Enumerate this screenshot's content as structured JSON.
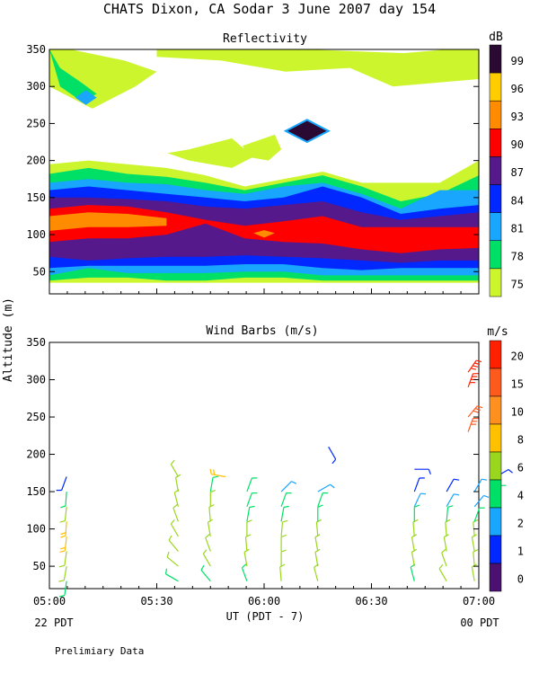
{
  "figure": {
    "title": "CHATS Dixon, CA  Sodar   3 June 2007  day 154",
    "y_axis_label": "Altitude (m)",
    "x_axis_label": "UT  (PDT - 7)",
    "left_date": "22 PDT",
    "right_date": "00 PDT",
    "footer": "Prelimiary Data"
  },
  "chart_data": [
    {
      "type": "heatmap",
      "title": "Reflectivity",
      "units": "dB",
      "x_ticks": [
        "05:00",
        "05:30",
        "06:00",
        "06:30",
        "07:00"
      ],
      "x_range_hours": [
        5.0,
        7.0
      ],
      "y_ticks": [
        50,
        100,
        150,
        200,
        250,
        300,
        350
      ],
      "ylim": [
        20,
        350
      ],
      "colorbar": {
        "labels": [
          "99",
          "96",
          "93",
          "90",
          "87",
          "84",
          "81",
          "78",
          "75"
        ],
        "colors": [
          "#2a0a33",
          "#ffcc00",
          "#ff8c00",
          "#ff0000",
          "#55198c",
          "#0028ff",
          "#18a6ff",
          "#00e067",
          "#ccf52e"
        ]
      },
      "bands": [
        {
          "level": "75",
          "color": "#ccf52e",
          "top": [
            195,
            200,
            195,
            190,
            180,
            165,
            175,
            185,
            170,
            170,
            170,
            200
          ],
          "bottom": [
            35,
            35,
            35,
            35,
            35,
            35,
            35,
            35,
            35,
            35,
            35,
            35
          ]
        },
        {
          "level": "78",
          "color": "#00e067",
          "top": [
            182,
            190,
            182,
            178,
            170,
            160,
            170,
            180,
            165,
            145,
            155,
            180
          ],
          "bottom": [
            38,
            42,
            42,
            38,
            38,
            42,
            42,
            38,
            38,
            38,
            38,
            38
          ]
        },
        {
          "level": "81",
          "color": "#18a6ff",
          "top": [
            170,
            175,
            170,
            168,
            160,
            155,
            165,
            170,
            155,
            135,
            160,
            160
          ],
          "bottom": [
            45,
            55,
            48,
            48,
            48,
            50,
            50,
            45,
            45,
            45,
            45,
            45
          ]
        },
        {
          "level": "84",
          "color": "#0028ff",
          "top": [
            160,
            165,
            160,
            155,
            150,
            145,
            150,
            165,
            150,
            128,
            135,
            140
          ],
          "bottom": [
            55,
            58,
            58,
            58,
            58,
            60,
            60,
            55,
            52,
            55,
            55,
            55
          ]
        },
        {
          "level": "87",
          "color": "#55198c",
          "top": [
            150,
            150,
            148,
            145,
            138,
            135,
            140,
            145,
            130,
            120,
            125,
            130
          ],
          "bottom": [
            70,
            65,
            68,
            70,
            70,
            72,
            70,
            68,
            65,
            62,
            65,
            65
          ]
        },
        {
          "level": "90",
          "color": "#ff0000",
          "top": [
            135,
            140,
            138,
            130,
            120,
            112,
            118,
            125,
            110,
            110,
            110,
            110
          ],
          "bottom": [
            90,
            95,
            95,
            100,
            115,
            95,
            90,
            88,
            80,
            75,
            80,
            82
          ]
        },
        {
          "level": "93",
          "color": "#ff8c00",
          "top": [
            125,
            130,
            128,
            122
          ],
          "bottom": [
            105,
            110,
            110,
            112
          ]
        }
      ],
      "patches": [
        {
          "level": "75",
          "color": "#ccf52e",
          "shape": "upper-left",
          "x": [
            5.0,
            5.1,
            5.35,
            5.5,
            5.4,
            5.2,
            5.0
          ],
          "y": [
            350,
            350,
            335,
            320,
            300,
            270,
            300
          ]
        },
        {
          "level": "78",
          "color": "#00e067",
          "shape": "upper-left",
          "x": [
            5.0,
            5.05,
            5.15,
            5.22,
            5.15,
            5.05
          ],
          "y": [
            350,
            325,
            305,
            290,
            280,
            300
          ]
        },
        {
          "level": "81",
          "color": "#18a6ff",
          "shape": "upper-left",
          "x": [
            5.12,
            5.17,
            5.22,
            5.17
          ],
          "y": [
            285,
            295,
            285,
            275
          ]
        },
        {
          "level": "75",
          "color": "#ccf52e",
          "shape": "top-band",
          "x": [
            5.5,
            6.2,
            6.65,
            6.85,
            7.0,
            7.0,
            6.6,
            6.4,
            6.1,
            5.8,
            5.5
          ],
          "y": [
            350,
            350,
            345,
            350,
            350,
            310,
            300,
            325,
            320,
            335,
            340
          ]
        },
        {
          "level": "75",
          "color": "#ccf52e",
          "shape": "mid-patch",
          "x": [
            5.65,
            5.85,
            5.95,
            5.85,
            5.65,
            5.55
          ],
          "y": [
            215,
            230,
            205,
            190,
            200,
            210
          ]
        },
        {
          "level": "75",
          "color": "#ccf52e",
          "shape": "mid-patch",
          "x": [
            5.9,
            6.05,
            6.08,
            6.02,
            5.92
          ],
          "y": [
            220,
            235,
            215,
            200,
            205
          ]
        },
        {
          "level": "99",
          "color": "#2a0a33",
          "shape": "diamond",
          "x": [
            6.2,
            6.3,
            6.2,
            6.1
          ],
          "y": [
            255,
            240,
            225,
            240
          ]
        },
        {
          "level": "93",
          "color": "#ff8c00",
          "shape": "hotspot",
          "x": [
            5.95,
            6.0,
            6.05,
            6.0
          ],
          "y": [
            102,
            106,
            102,
            96
          ]
        }
      ]
    },
    {
      "type": "scatter",
      "title": "Wind Barbs (m/s)",
      "units": "m/s",
      "x_ticks": [
        "05:00",
        "05:30",
        "06:00",
        "06:30",
        "07:00"
      ],
      "x_range_hours": [
        5.0,
        7.0
      ],
      "y_ticks": [
        50,
        100,
        150,
        200,
        250,
        300,
        350
      ],
      "ylim": [
        20,
        350
      ],
      "colorbar": {
        "labels": [
          "20",
          "15",
          "10",
          "8",
          "6",
          "4",
          "2",
          "1",
          "0"
        ],
        "colors": [
          "#ff2000",
          "#ff5a1e",
          "#ff9020",
          "#ffc000",
          "#9ad61e",
          "#00e067",
          "#18a6ff",
          "#0028ff",
          "#4b1070"
        ]
      },
      "columns": [
        {
          "time": 5.08,
          "points": [
            [
              30,
              4,
              8
            ],
            [
              50,
              5,
              10
            ],
            [
              70,
              5,
              8
            ],
            [
              90,
              8,
              6
            ],
            [
              110,
              8,
              4
            ],
            [
              130,
              6,
              6
            ],
            [
              150,
              4,
              4
            ],
            [
              170,
              1,
              20
            ]
          ]
        },
        {
          "time": 5.6,
          "points": [
            [
              30,
              4,
              120
            ],
            [
              50,
              5,
              130
            ],
            [
              70,
              5,
              140
            ],
            [
              90,
              6,
              150
            ],
            [
              110,
              6,
              160
            ],
            [
              130,
              6,
              165
            ],
            [
              150,
              6,
              170
            ],
            [
              170,
              6,
              150
            ]
          ]
        },
        {
          "time": 5.75,
          "points": [
            [
              30,
              4,
              140
            ],
            [
              50,
              5,
              150
            ],
            [
              70,
              6,
              160
            ],
            [
              90,
              6,
              170
            ],
            [
              110,
              6,
              175
            ],
            [
              130,
              6,
              180
            ],
            [
              150,
              4,
              190
            ]
          ]
        },
        {
          "time": 5.82,
          "points": [
            [
              170,
              8,
              100
            ]
          ]
        },
        {
          "time": 5.92,
          "points": [
            [
              30,
              4,
              160
            ],
            [
              50,
              5,
              170
            ],
            [
              70,
              5,
              175
            ],
            [
              90,
              6,
              180
            ],
            [
              110,
              4,
              190
            ],
            [
              130,
              4,
              200
            ],
            [
              150,
              3,
              200
            ]
          ]
        },
        {
          "time": 6.08,
          "points": [
            [
              30,
              5,
              175
            ],
            [
              50,
              6,
              180
            ],
            [
              70,
              6,
              180
            ],
            [
              90,
              6,
              185
            ],
            [
              110,
              4,
              190
            ],
            [
              130,
              3,
              200
            ],
            [
              150,
              2,
              225
            ]
          ]
        },
        {
          "time": 6.25,
          "points": [
            [
              30,
              5,
              165
            ],
            [
              50,
              5,
              170
            ],
            [
              70,
              6,
              170
            ],
            [
              90,
              6,
              175
            ],
            [
              110,
              4,
              180
            ],
            [
              130,
              3,
              200
            ],
            [
              150,
              2,
              240
            ]
          ]
        },
        {
          "time": 6.3,
          "points": [
            [
              210,
              1,
              330
            ]
          ]
        },
        {
          "time": 6.7,
          "points": [
            [
              30,
              4,
              165
            ],
            [
              50,
              5,
              170
            ],
            [
              70,
              5,
              170
            ],
            [
              90,
              6,
              175
            ],
            [
              110,
              4,
              180
            ],
            [
              130,
              2,
              205
            ],
            [
              150,
              1,
              200
            ],
            [
              180,
              1,
              270
            ]
          ]
        },
        {
          "time": 6.85,
          "points": [
            [
              30,
              5,
              150
            ],
            [
              50,
              6,
              160
            ],
            [
              70,
              6,
              170
            ],
            [
              90,
              6,
              175
            ],
            [
              110,
              4,
              185
            ],
            [
              130,
              2,
              210
            ],
            [
              150,
              1,
              210
            ]
          ]
        },
        {
          "time": 6.98,
          "points": [
            [
              30,
              5,
              170
            ],
            [
              50,
              6,
              175
            ],
            [
              70,
              6,
              170
            ],
            [
              90,
              6,
              175
            ],
            [
              110,
              4,
              200
            ],
            [
              130,
              2,
              220
            ],
            [
              150,
              2,
              210
            ]
          ]
        },
        {
          "time": 6.95,
          "points": [
            [
              230,
              15,
              200
            ],
            [
              250,
              15,
              220
            ],
            [
              290,
              20,
              200
            ],
            [
              310,
              20,
              215
            ]
          ]
        },
        {
          "time": 7.08,
          "points": [
            [
              30,
              6,
              180
            ],
            [
              60,
              6,
              170
            ],
            [
              100,
              6,
              180
            ],
            [
              140,
              4,
              200
            ],
            [
              170,
              1,
              240
            ]
          ]
        }
      ]
    }
  ]
}
